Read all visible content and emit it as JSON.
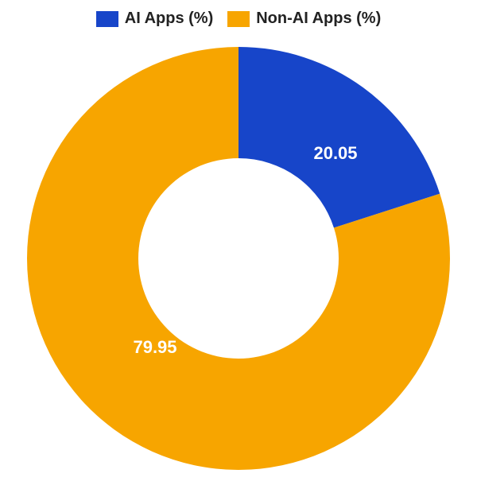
{
  "chart": {
    "type": "donut",
    "background_color": "#ffffff",
    "label_text_color": "#ffffff",
    "label_fontsize": 22,
    "label_fontweight": 700,
    "legend_fontsize": 20,
    "legend_fontweight": 700,
    "legend_text_color": "#222222",
    "outer_radius_ratio": 0.95,
    "inner_radius_ratio": 0.45,
    "start_angle_deg": 0,
    "series": [
      {
        "label": "AI Apps (%)",
        "value": 20.05,
        "color": "#1745c9",
        "value_text": "20.05"
      },
      {
        "label": "Non-AI Apps (%)",
        "value": 79.95,
        "color": "#f7a500",
        "value_text": "79.95"
      }
    ]
  }
}
